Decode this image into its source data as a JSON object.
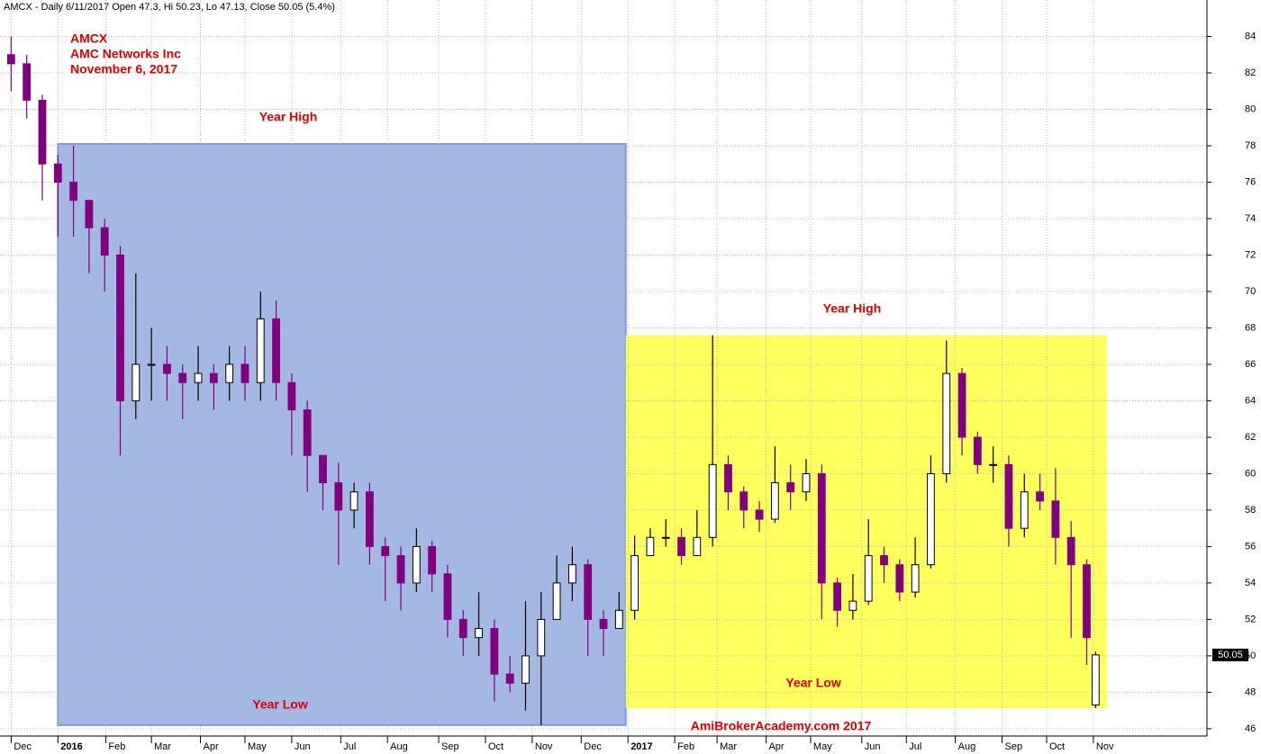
{
  "chart_data": {
    "type": "candlestick",
    "header": "AMCX - Daily 6/11/2017 Open 47.3, Hi 50.23, Lo 47.13, Close 50.05 (5.4%)",
    "title": "AMCX",
    "subtitle": [
      "AMC Networks Inc",
      "November 6, 2017"
    ],
    "watermark": "AmiBrokerAcademy.com  2017",
    "x": [
      0,
      7,
      14,
      21,
      28,
      35,
      42,
      49,
      56,
      63,
      70,
      77,
      84,
      91,
      98,
      105,
      112,
      119,
      126,
      133,
      140,
      147,
      154,
      161,
      168,
      175,
      182,
      189,
      196,
      203,
      210,
      217,
      224,
      231,
      238,
      245,
      252,
      259,
      266,
      273,
      280,
      287,
      294,
      301,
      308,
      315,
      322,
      329,
      336,
      343,
      350,
      357,
      364,
      371,
      378,
      385,
      392,
      399,
      406,
      413,
      420,
      427,
      434,
      441,
      448,
      455,
      462,
      469,
      476,
      483,
      487
    ],
    "open": [
      83,
      82.5,
      80.5,
      77,
      76,
      75,
      73.5,
      72,
      64,
      66,
      66,
      65.5,
      65,
      65.5,
      65,
      66,
      65,
      68.5,
      65,
      63.5,
      61,
      59.5,
      58,
      59,
      56,
      55.5,
      54,
      56,
      54.5,
      52,
      51,
      51.5,
      49,
      48.5,
      50,
      52,
      54,
      55,
      52,
      51.5,
      52.5,
      55.5,
      56.5,
      56.5,
      55.5,
      56.5,
      60.5,
      59,
      58,
      57.5,
      59.5,
      59,
      60,
      54,
      52.5,
      53,
      55.5,
      55,
      53.5,
      55,
      60,
      65.5,
      62,
      60.5,
      60.5,
      57,
      59,
      58.5,
      56.5,
      55,
      47.3
    ],
    "high": [
      84,
      83,
      80.8,
      77.5,
      78,
      75,
      74,
      72.5,
      71,
      68,
      67,
      66,
      67,
      66,
      67,
      67,
      70,
      69.5,
      65.5,
      64,
      61,
      60.6,
      59.5,
      59.5,
      56.5,
      56,
      57,
      56.3,
      55,
      52.5,
      53.5,
      52,
      50,
      53,
      53.5,
      55.5,
      56,
      55.3,
      52.5,
      53.5,
      56.6,
      57,
      57.5,
      57,
      58,
      67.6,
      61,
      59.3,
      58.5,
      61.5,
      60.5,
      60.8,
      60.5,
      54.3,
      54.5,
      57.5,
      56,
      55.3,
      56.5,
      61,
      67.3,
      65.8,
      62.3,
      61.5,
      61,
      60,
      60,
      60.3,
      57.4,
      55.3,
      50.23
    ],
    "low": [
      81,
      79.5,
      75,
      73,
      73,
      71,
      70,
      61,
      63,
      64,
      64,
      63,
      64,
      63.5,
      64,
      64,
      64,
      64,
      61,
      59,
      58,
      55,
      57,
      55,
      53,
      52.5,
      53.5,
      53.5,
      51,
      50,
      50,
      47.5,
      48,
      47,
      46.2,
      52,
      53,
      50,
      50,
      51.5,
      52,
      55.5,
      56,
      55,
      55.5,
      56,
      58,
      57,
      56.8,
      57.3,
      58,
      58.5,
      52,
      51.6,
      52,
      52.8,
      54,
      53,
      53.2,
      54.8,
      59.5,
      61,
      60,
      59.5,
      56,
      56.5,
      58,
      55,
      51,
      49.5,
      47.13
    ],
    "close": [
      82.5,
      80.5,
      77,
      76,
      75,
      73.5,
      72,
      64,
      66,
      66,
      65.5,
      65,
      65.5,
      65,
      66,
      65,
      68.5,
      65,
      63.5,
      61,
      59.5,
      58,
      59,
      56,
      55.5,
      54,
      56,
      54.5,
      52,
      51,
      51.5,
      49,
      48.5,
      50,
      52,
      54,
      55,
      52,
      51.5,
      52.5,
      55.5,
      56.5,
      56.5,
      55.5,
      56.5,
      60.5,
      59,
      58,
      57.5,
      59.5,
      59,
      60,
      54,
      52.5,
      53,
      55.5,
      55,
      53.5,
      55,
      60,
      65.5,
      62,
      60.5,
      60.5,
      57,
      59,
      58.5,
      56.5,
      55,
      51,
      50.05
    ],
    "up_color": "#000000",
    "down_color": "#800080",
    "regions": [
      {
        "x": [
          21,
          276
        ],
        "low": 46.2,
        "high": 78.1,
        "color": "#a3b8e2",
        "high_label": "Year High",
        "low_label": "Year Low"
      },
      {
        "x": [
          276,
          492
        ],
        "low": 47.13,
        "high": 67.6,
        "color": "#ffff5e",
        "high_label": "Year High",
        "low_label": "Year Low"
      }
    ],
    "xlim": [
      -5,
      537
    ],
    "xticks": [
      {
        "value": 0,
        "label": "Dec"
      },
      {
        "value": 21,
        "label": "2016"
      },
      {
        "value": 42.5,
        "label": "Feb"
      },
      {
        "value": 63,
        "label": "Mar"
      },
      {
        "value": 85,
        "label": "Apr"
      },
      {
        "value": 105,
        "label": "May"
      },
      {
        "value": 126,
        "label": "Jun"
      },
      {
        "value": 148,
        "label": "Jul"
      },
      {
        "value": 169,
        "label": "Aug"
      },
      {
        "value": 192,
        "label": "Sep"
      },
      {
        "value": 213,
        "label": "Oct"
      },
      {
        "value": 234,
        "label": "Nov"
      },
      {
        "value": 256,
        "label": "Dec"
      },
      {
        "value": 277,
        "label": "2017"
      },
      {
        "value": 298,
        "label": "Feb"
      },
      {
        "value": 317,
        "label": "Mar"
      },
      {
        "value": 339,
        "label": "Apr"
      },
      {
        "value": 359,
        "label": "May"
      },
      {
        "value": 382,
        "label": "Jun"
      },
      {
        "value": 402,
        "label": "Jul"
      },
      {
        "value": 424,
        "label": "Aug"
      },
      {
        "value": 445,
        "label": "Sep"
      },
      {
        "value": 465,
        "label": "Oct"
      },
      {
        "value": 486,
        "label": "Nov"
      }
    ],
    "ylim": [
      45.6,
      86
    ],
    "yticks": [
      46,
      48,
      50,
      52,
      54,
      56,
      58,
      60,
      62,
      64,
      66,
      68,
      70,
      72,
      74,
      76,
      78,
      80,
      82,
      84
    ],
    "grid": true
  }
}
